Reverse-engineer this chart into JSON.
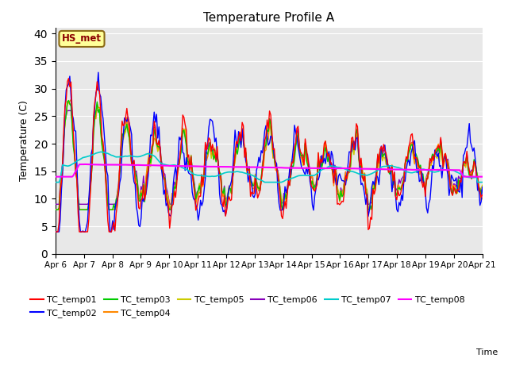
{
  "title": "Temperature Profile A",
  "xlabel": "Time",
  "ylabel": "Temperature (C)",
  "ylim": [
    0,
    41
  ],
  "yticks": [
    0,
    5,
    10,
    15,
    20,
    25,
    30,
    35,
    40
  ],
  "annotation_text": "HS_met",
  "bg_color": "#e8e8e8",
  "series_colors": {
    "TC_temp01": "#ff0000",
    "TC_temp02": "#0000ff",
    "TC_temp03": "#00cc00",
    "TC_temp04": "#ff8800",
    "TC_temp05": "#cccc00",
    "TC_temp06": "#8800bb",
    "TC_temp07": "#00cccc",
    "TC_temp08": "#ff00ff"
  },
  "figsize": [
    6.4,
    4.8
  ],
  "dpi": 100
}
